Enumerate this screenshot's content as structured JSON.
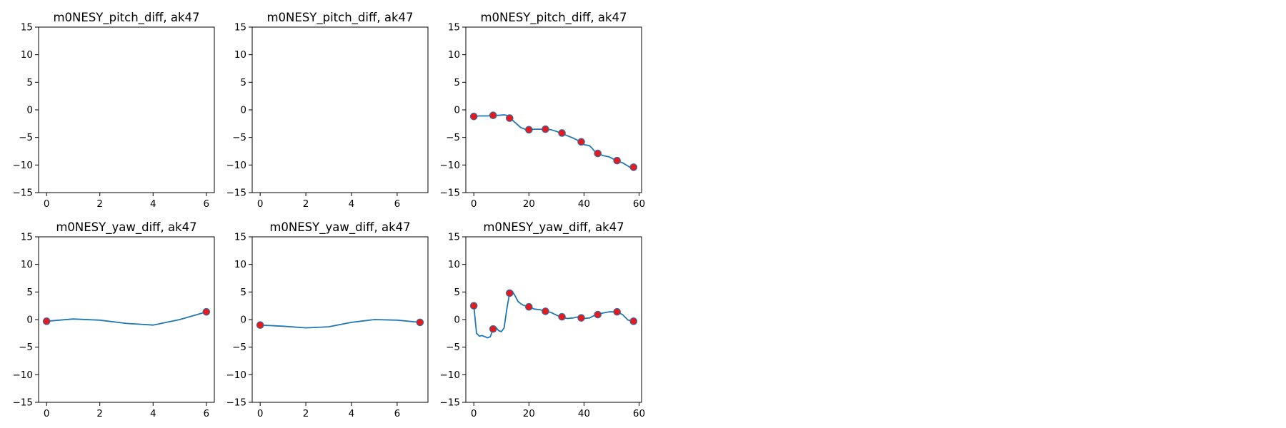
{
  "chart_data": [
    {
      "type": "line",
      "title": "m0NESY_pitch_diff, ak47",
      "xticks": [
        0,
        2,
        4,
        6
      ],
      "xlim": [
        -0.3,
        6.3
      ],
      "ylim": [
        -15,
        15
      ],
      "yticks": [
        15,
        10,
        5,
        0,
        -5,
        -10,
        -15
      ],
      "line": [],
      "markers": []
    },
    {
      "type": "line",
      "title": "m0NESY_pitch_diff, ak47",
      "xticks": [
        0,
        2,
        4,
        6
      ],
      "xlim": [
        -0.35,
        7.35
      ],
      "ylim": [
        -15,
        15
      ],
      "yticks": [
        15,
        10,
        5,
        0,
        -5,
        -10,
        -15
      ],
      "line": [],
      "markers": []
    },
    {
      "type": "line",
      "title": "m0NESY_pitch_diff, ak47",
      "xticks": [
        0,
        20,
        40,
        60
      ],
      "xlim": [
        -2.9,
        60.9
      ],
      "ylim": [
        -15,
        15
      ],
      "yticks": [
        15,
        10,
        5,
        0,
        -5,
        -10,
        -15
      ],
      "line": [
        [
          0,
          -1.2
        ],
        [
          2,
          -1.1
        ],
        [
          5,
          -1.1
        ],
        [
          7,
          -1.0
        ],
        [
          9,
          -1.0
        ],
        [
          11,
          -0.9
        ],
        [
          12,
          -1.0
        ],
        [
          13,
          -1.4
        ],
        [
          15,
          -2.3
        ],
        [
          17,
          -3.2
        ],
        [
          19,
          -3.6
        ],
        [
          20,
          -3.6
        ],
        [
          22,
          -3.5
        ],
        [
          24,
          -3.5
        ],
        [
          26,
          -3.5
        ],
        [
          28,
          -3.6
        ],
        [
          30,
          -3.9
        ],
        [
          32,
          -4.3
        ],
        [
          34,
          -4.7
        ],
        [
          36,
          -5.1
        ],
        [
          38,
          -5.6
        ],
        [
          39,
          -5.9
        ],
        [
          40,
          -6.3
        ],
        [
          42,
          -6.5
        ],
        [
          43,
          -7.0
        ],
        [
          44,
          -7.6
        ],
        [
          45,
          -7.9
        ],
        [
          47,
          -8.3
        ],
        [
          49,
          -8.5
        ],
        [
          51,
          -9.0
        ],
        [
          52,
          -9.3
        ],
        [
          54,
          -9.6
        ],
        [
          56,
          -10.2
        ],
        [
          57,
          -10.5
        ],
        [
          58,
          -10.4
        ]
      ],
      "markers": [
        [
          0,
          -1.2
        ],
        [
          7,
          -1.0
        ],
        [
          13,
          -1.5
        ],
        [
          20,
          -3.6
        ],
        [
          26,
          -3.5
        ],
        [
          32,
          -4.2
        ],
        [
          39,
          -5.8
        ],
        [
          45,
          -7.9
        ],
        [
          52,
          -9.2
        ],
        [
          58,
          -10.4
        ]
      ]
    },
    {
      "type": "line",
      "title": "m0NESY_yaw_diff, ak47",
      "xticks": [
        0,
        2,
        4,
        6
      ],
      "xlim": [
        -0.3,
        6.3
      ],
      "ylim": [
        -15,
        15
      ],
      "yticks": [
        15,
        10,
        5,
        0,
        -5,
        -10,
        -15
      ],
      "line": [
        [
          0,
          -0.3
        ],
        [
          1,
          0.1
        ],
        [
          2,
          -0.1
        ],
        [
          3,
          -0.7
        ],
        [
          4,
          -1.0
        ],
        [
          5,
          0.0
        ],
        [
          6,
          1.4
        ]
      ],
      "markers": [
        [
          0,
          -0.3
        ],
        [
          6,
          1.4
        ]
      ]
    },
    {
      "type": "line",
      "title": "m0NESY_yaw_diff, ak47",
      "xticks": [
        0,
        2,
        4,
        6
      ],
      "xlim": [
        -0.35,
        7.35
      ],
      "ylim": [
        -15,
        15
      ],
      "yticks": [
        15,
        10,
        5,
        0,
        -5,
        -10,
        -15
      ],
      "line": [
        [
          0,
          -1.0
        ],
        [
          1,
          -1.2
        ],
        [
          2,
          -1.5
        ],
        [
          3,
          -1.3
        ],
        [
          4,
          -0.5
        ],
        [
          5,
          0.0
        ],
        [
          6,
          -0.1
        ],
        [
          7,
          -0.5
        ]
      ],
      "markers": [
        [
          0,
          -1.0
        ],
        [
          7,
          -0.5
        ]
      ]
    },
    {
      "type": "line",
      "title": "m0NESY_yaw_diff, ak47",
      "xticks": [
        0,
        20,
        40,
        60
      ],
      "xlim": [
        -2.9,
        60.9
      ],
      "ylim": [
        -15,
        15
      ],
      "yticks": [
        15,
        10,
        5,
        0,
        -5,
        -10,
        -15
      ],
      "line": [
        [
          0,
          2.5
        ],
        [
          1,
          -2.5
        ],
        [
          2,
          -3.0
        ],
        [
          3,
          -2.9
        ],
        [
          4,
          -3.1
        ],
        [
          5,
          -3.3
        ],
        [
          6,
          -3.1
        ],
        [
          7,
          -1.7
        ],
        [
          8,
          -1.4
        ],
        [
          9,
          -2.0
        ],
        [
          10,
          -2.2
        ],
        [
          11,
          -1.5
        ],
        [
          12,
          2.0
        ],
        [
          13,
          4.8
        ],
        [
          14,
          5.1
        ],
        [
          15,
          4.3
        ],
        [
          16,
          3.3
        ],
        [
          17,
          2.9
        ],
        [
          18,
          2.6
        ],
        [
          20,
          2.3
        ],
        [
          22,
          1.9
        ],
        [
          24,
          1.8
        ],
        [
          26,
          1.5
        ],
        [
          28,
          1.3
        ],
        [
          30,
          0.8
        ],
        [
          32,
          0.4
        ],
        [
          34,
          0.2
        ],
        [
          36,
          0.3
        ],
        [
          38,
          0.5
        ],
        [
          39,
          0.3
        ],
        [
          40,
          0.2
        ],
        [
          42,
          0.3
        ],
        [
          44,
          0.8
        ],
        [
          45,
          1.0
        ],
        [
          47,
          1.2
        ],
        [
          49,
          1.4
        ],
        [
          51,
          1.4
        ],
        [
          52,
          1.4
        ],
        [
          54,
          0.9
        ],
        [
          56,
          -0.1
        ],
        [
          58,
          -0.3
        ]
      ],
      "markers": [
        [
          0,
          2.5
        ],
        [
          7,
          -1.7
        ],
        [
          13,
          4.8
        ],
        [
          20,
          2.3
        ],
        [
          26,
          1.5
        ],
        [
          32,
          0.5
        ],
        [
          39,
          0.3
        ],
        [
          45,
          0.9
        ],
        [
          52,
          1.4
        ],
        [
          58,
          -0.3
        ]
      ]
    }
  ]
}
